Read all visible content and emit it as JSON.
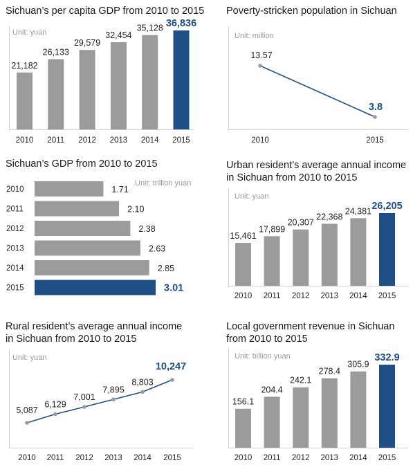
{
  "colors": {
    "bar": "#9b9b9b",
    "highlight": "#1d4f86",
    "line": "#1d4f86",
    "axis": "#cfcfcf",
    "text": "#222222",
    "muted": "#999999"
  },
  "chart_data": [
    {
      "id": "gdp_per_capita",
      "type": "bar",
      "title": "Sichuan’s per capita GDP from 2010 to 2015",
      "unit": "Unit: yuan",
      "categories": [
        "2010",
        "2011",
        "2012",
        "2013",
        "2014",
        "2015"
      ],
      "values": [
        21182,
        26133,
        29579,
        32454,
        35128,
        36836
      ],
      "labels": [
        "21,182",
        "26,133",
        "29,579",
        "32,454",
        "35,128",
        "36,836"
      ],
      "highlight_index": 5
    },
    {
      "id": "poverty",
      "type": "line",
      "title": "Poverty-stricken population in Sichuan",
      "unit": "Unit: million",
      "categories": [
        "2010",
        "2015"
      ],
      "values": [
        13.57,
        3.8
      ],
      "labels": [
        "13.57",
        "3.8"
      ],
      "highlight_index": 1
    },
    {
      "id": "gdp",
      "type": "bar",
      "orientation": "horizontal",
      "title": "Sichuan’s GDP from 2010 to 2015",
      "unit": "Unit: trillion yuan",
      "categories": [
        "2010",
        "2011",
        "2012",
        "2013",
        "2014",
        "2015"
      ],
      "values": [
        1.71,
        2.1,
        2.38,
        2.63,
        2.85,
        3.01
      ],
      "labels": [
        "1.71",
        "2.10",
        "2.38",
        "2.63",
        "2.85",
        "3.01"
      ],
      "highlight_index": 5
    },
    {
      "id": "urban_income",
      "type": "bar",
      "title": "Urban resident’s average annual income",
      "title2": "in Sichuan from 2010 to 2015",
      "unit": "Unit: yuan",
      "categories": [
        "2010",
        "2011",
        "2012",
        "2013",
        "2014",
        "2015"
      ],
      "values": [
        15461,
        17899,
        20307,
        22368,
        24381,
        26205
      ],
      "labels": [
        "15,461",
        "17,899",
        "20,307",
        "22,368",
        "24,381",
        "26,205"
      ],
      "highlight_index": 5
    },
    {
      "id": "rural_income",
      "type": "line",
      "title": "Rural resident’s average annual income",
      "title2": "in Sichuan from 2010 to 2015",
      "unit": "Unit: yuan",
      "categories": [
        "2010",
        "2011",
        "2012",
        "2013",
        "2014",
        "2015"
      ],
      "values": [
        5087,
        6129,
        7001,
        7895,
        8803,
        10247
      ],
      "labels": [
        "5,087",
        "6,129",
        "7,001",
        "7,895",
        "8,803",
        "10,247"
      ],
      "highlight_index": 5
    },
    {
      "id": "revenue",
      "type": "bar",
      "title": "Local government revenue in Sichuan",
      "title2": "from 2010 to 2015",
      "unit": "Unit: billion yuan",
      "categories": [
        "2010",
        "2011",
        "2012",
        "2013",
        "2014",
        "2015"
      ],
      "values": [
        156.1,
        204.4,
        242.1,
        278.4,
        305.9,
        332.9
      ],
      "labels": [
        "156.1",
        "204.4",
        "242.1",
        "278.4",
        "305.9",
        "332.9"
      ],
      "highlight_index": 5
    }
  ]
}
